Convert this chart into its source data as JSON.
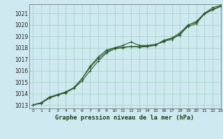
{
  "title": "Graphe pression niveau de la mer (hPa)",
  "background_color": "#cfe9f0",
  "grid_color": "#a8d4c8",
  "line_color": "#2d5a2d",
  "xlim": [
    -0.5,
    23
  ],
  "ylim": [
    1012.7,
    1021.8
  ],
  "xticks": [
    0,
    1,
    2,
    3,
    4,
    5,
    6,
    7,
    8,
    9,
    10,
    11,
    12,
    13,
    14,
    15,
    16,
    17,
    18,
    19,
    20,
    21,
    22,
    23
  ],
  "yticks": [
    1013,
    1014,
    1015,
    1016,
    1017,
    1018,
    1019,
    1020,
    1021
  ],
  "series": [
    [
      1013.0,
      1013.2,
      1013.7,
      1013.9,
      1014.05,
      1014.5,
      1015.3,
      1016.4,
      1017.2,
      1017.8,
      1018.0,
      1018.2,
      1018.5,
      1018.2,
      1018.2,
      1018.3,
      1018.5,
      1018.85,
      1019.1,
      1019.95,
      1020.3,
      1021.0,
      1021.5,
      1021.7
    ],
    [
      1013.0,
      1013.15,
      1013.6,
      1013.85,
      1014.1,
      1014.45,
      1015.1,
      1016.0,
      1016.85,
      1017.55,
      1017.9,
      1018.0,
      1018.1,
      1018.1,
      1018.15,
      1018.25,
      1018.6,
      1018.7,
      1019.2,
      1019.85,
      1020.1,
      1020.95,
      1021.3,
      1021.6
    ],
    [
      1013.0,
      1013.2,
      1013.65,
      1013.92,
      1014.15,
      1014.52,
      1015.3,
      1016.3,
      1017.05,
      1017.65,
      1018.0,
      1018.05,
      1018.1,
      1018.05,
      1018.1,
      1018.2,
      1018.65,
      1018.85,
      1019.3,
      1020.0,
      1020.2,
      1021.0,
      1021.35,
      1021.65
    ]
  ]
}
